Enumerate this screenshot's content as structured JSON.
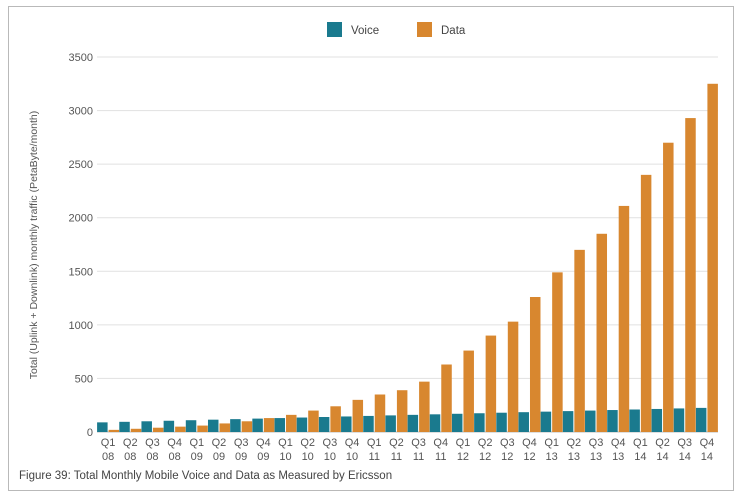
{
  "caption": "Figure 39: Total Monthly Mobile Voice and Data as Measured by Ericsson",
  "chart_data": {
    "type": "bar",
    "title": "",
    "xlabel": "",
    "ylabel": "Total (Uplink + Downlink) monthly traffic (PetaByte/month)",
    "ylim": [
      0,
      3500
    ],
    "yticks": [
      0,
      500,
      1000,
      1500,
      2000,
      2500,
      3000,
      3500
    ],
    "grid": true,
    "legend_position": "top-center",
    "categories": [
      [
        "Q1",
        "08"
      ],
      [
        "Q2",
        "08"
      ],
      [
        "Q3",
        "08"
      ],
      [
        "Q4",
        "08"
      ],
      [
        "Q1",
        "09"
      ],
      [
        "Q2",
        "09"
      ],
      [
        "Q3",
        "09"
      ],
      [
        "Q4",
        "09"
      ],
      [
        "Q1",
        "10"
      ],
      [
        "Q2",
        "10"
      ],
      [
        "Q3",
        "10"
      ],
      [
        "Q4",
        "10"
      ],
      [
        "Q1",
        "11"
      ],
      [
        "Q2",
        "11"
      ],
      [
        "Q3",
        "11"
      ],
      [
        "Q4",
        "11"
      ],
      [
        "Q1",
        "12"
      ],
      [
        "Q2",
        "12"
      ],
      [
        "Q3",
        "12"
      ],
      [
        "Q4",
        "12"
      ],
      [
        "Q1",
        "13"
      ],
      [
        "Q2",
        "13"
      ],
      [
        "Q3",
        "13"
      ],
      [
        "Q4",
        "13"
      ],
      [
        "Q1",
        "14"
      ],
      [
        "Q2",
        "14"
      ],
      [
        "Q3",
        "14"
      ],
      [
        "Q4",
        "14"
      ]
    ],
    "series": [
      {
        "name": "Voice",
        "color": "#1a7a8e",
        "values": [
          90,
          95,
          100,
          105,
          110,
          115,
          120,
          125,
          130,
          135,
          140,
          145,
          150,
          155,
          160,
          165,
          170,
          175,
          180,
          185,
          190,
          195,
          200,
          205,
          210,
          215,
          220,
          225
        ]
      },
      {
        "name": "Data",
        "color": "#d8872f",
        "values": [
          20,
          30,
          40,
          50,
          60,
          80,
          100,
          130,
          160,
          200,
          240,
          300,
          350,
          390,
          470,
          630,
          760,
          900,
          1030,
          1260,
          1490,
          1700,
          1850,
          2110,
          2400,
          2700,
          2930,
          3250
        ]
      }
    ]
  }
}
